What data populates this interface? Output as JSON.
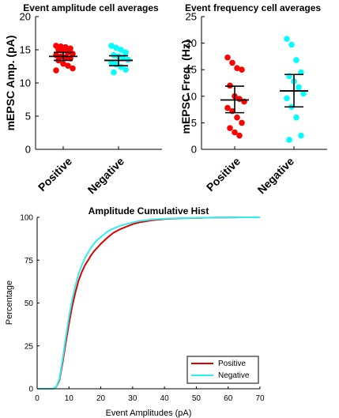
{
  "chart_data": [
    {
      "type": "scatter",
      "title": "Event amplitude cell averages",
      "ylabel": "mEPSC Amp. (pA)",
      "ylim": [
        0,
        20
      ],
      "yticks": [
        0,
        5,
        10,
        15,
        20
      ],
      "categories": [
        "Positive",
        "Negative"
      ],
      "colors": [
        "#ff0000",
        "#00ffff"
      ],
      "series": [
        {
          "values": [
            15.6,
            15.5,
            15.4,
            15.2,
            15.0,
            14.9,
            14.6,
            14.4,
            14.2,
            14.0,
            13.9,
            13.7,
            13.4,
            12.9,
            12.6,
            12.2,
            11.9
          ],
          "mean": 14.0,
          "err_low": 13.4,
          "err_high": 14.6
        },
        {
          "values": [
            15.6,
            15.3,
            15.0,
            14.6,
            14.2,
            14.0,
            13.8,
            13.5,
            13.1,
            12.8,
            12.4,
            12.0,
            11.6
          ],
          "mean": 13.4,
          "err_low": 12.6,
          "err_high": 14.1
        }
      ]
    },
    {
      "type": "scatter",
      "title": "Event frequency cell averages",
      "ylabel": "mEPSC Freq. (Hz)",
      "ylim": [
        0,
        25
      ],
      "yticks": [
        0,
        5,
        10,
        15,
        20,
        25
      ],
      "categories": [
        "Positive",
        "Negative"
      ],
      "colors": [
        "#ff0000",
        "#00ffff"
      ],
      "series": [
        {
          "values": [
            17.3,
            16.3,
            15.3,
            15.0,
            12.0,
            10.0,
            9.5,
            9.0,
            7.8,
            7.2,
            6.0,
            5.0,
            4.0,
            3.2,
            2.6
          ],
          "mean": 9.3,
          "err_low": 6.9,
          "err_high": 11.9
        },
        {
          "values": [
            20.8,
            19.7,
            16.8,
            14.5,
            13.8,
            12.8,
            11.7,
            10.5,
            9.6,
            8.0,
            6.0,
            2.6,
            1.8
          ],
          "mean": 11.0,
          "err_low": 8.0,
          "err_high": 14.1
        }
      ]
    },
    {
      "type": "line",
      "title": "Amplitude Cumulative Hist",
      "xlabel": "Event Amplitudes (pA)",
      "ylabel": "Percentage",
      "xlim": [
        0,
        70
      ],
      "ylim": [
        0,
        100
      ],
      "xticks": [
        0,
        10,
        20,
        30,
        40,
        50,
        60,
        70
      ],
      "yticks": [
        0,
        25,
        50,
        75,
        100
      ],
      "legend": "bottom-right",
      "series": [
        {
          "name": "Positive",
          "color": "#dd0000",
          "x": [
            0,
            5,
            6,
            7,
            8,
            9,
            10,
            11,
            12,
            13,
            14,
            15,
            16,
            17,
            18,
            19,
            20,
            22,
            24,
            26,
            28,
            30,
            32,
            34,
            36,
            38,
            40,
            45,
            50,
            55,
            60,
            65,
            70
          ],
          "y": [
            0,
            0,
            1,
            5,
            15,
            27,
            38,
            48,
            56,
            63,
            68,
            72,
            75,
            78,
            80.5,
            82.5,
            84.5,
            88,
            91,
            93,
            94.5,
            96,
            97,
            97.6,
            98.2,
            98.6,
            99,
            99.4,
            99.6,
            99.8,
            99.9,
            100,
            100
          ]
        },
        {
          "name": "Negative",
          "color": "#33eeee",
          "x": [
            0,
            5,
            6,
            7,
            8,
            9,
            10,
            11,
            12,
            13,
            14,
            15,
            16,
            17,
            18,
            19,
            20,
            22,
            24,
            26,
            28,
            30,
            32,
            34,
            36,
            38,
            40,
            45,
            50,
            55,
            60,
            65,
            70
          ],
          "y": [
            0,
            0,
            1,
            6,
            17,
            30,
            42,
            52,
            60,
            67,
            72,
            76,
            79.5,
            82.5,
            85,
            87,
            88.5,
            91.5,
            93.5,
            95,
            96,
            97,
            97.8,
            98.3,
            98.7,
            99,
            99.2,
            99.5,
            99.7,
            99.8,
            99.9,
            100,
            100
          ]
        }
      ]
    }
  ]
}
